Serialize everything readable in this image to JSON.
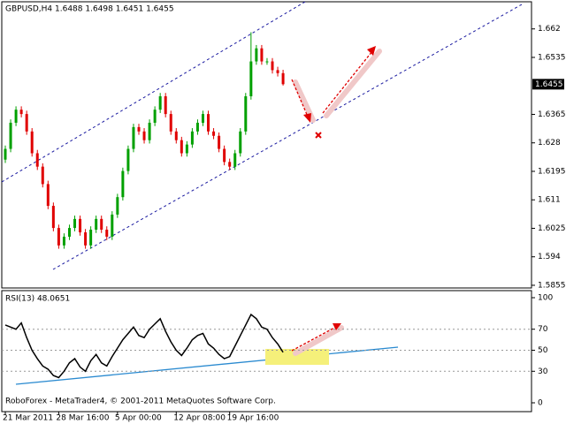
{
  "chart_data": [
    {
      "type": "candlestick",
      "title": "GBPUSD,H4  1.6488 1.6498 1.6451 1.6455",
      "categories": [
        "21 Mar 2011",
        null,
        null,
        null,
        null,
        null,
        null,
        null,
        null,
        null,
        "28 Mar 16:00",
        null,
        null,
        null,
        null,
        null,
        null,
        null,
        null,
        null,
        null,
        "5 Apr 00:00",
        null,
        null,
        null,
        null,
        null,
        null,
        null,
        null,
        null,
        null,
        "12 Apr 08:00",
        null,
        null,
        null,
        null,
        null,
        null,
        null,
        null,
        null,
        "19 Apr 16:00",
        null,
        null,
        null,
        null,
        null,
        null,
        null,
        null,
        null,
        null
      ],
      "open": [
        1.623,
        1.6262,
        1.634,
        1.6379,
        1.6366,
        1.6314,
        1.6249,
        1.6209,
        1.6157,
        1.6092,
        1.6026,
        1.5974,
        1.6,
        1.6026,
        1.6053,
        1.6013,
        1.5974,
        1.6021,
        1.6053,
        1.6021,
        1.6,
        1.6066,
        1.6118,
        1.6196,
        1.6262,
        1.6327,
        1.6314,
        1.6288,
        1.634,
        1.6379,
        1.6419,
        1.6366,
        1.6314,
        1.6288,
        1.6249,
        1.6275,
        1.6314,
        1.634,
        1.6366,
        1.6314,
        1.6301,
        1.6262,
        1.6223,
        1.6209,
        1.6249,
        1.6314,
        1.6419,
        1.6523,
        1.6562,
        1.6523,
        1.6523,
        1.6497,
        1.6488
      ],
      "high": [
        1.6272,
        1.635,
        1.6389,
        1.6389,
        1.6376,
        1.6324,
        1.6259,
        1.6219,
        1.6167,
        1.6102,
        1.6036,
        1.601,
        1.6036,
        1.6063,
        1.6063,
        1.6023,
        1.6031,
        1.6063,
        1.6063,
        1.6031,
        1.6076,
        1.6128,
        1.6206,
        1.6272,
        1.6337,
        1.6337,
        1.6324,
        1.635,
        1.6389,
        1.6429,
        1.6429,
        1.6376,
        1.6324,
        1.6298,
        1.6285,
        1.6324,
        1.635,
        1.6376,
        1.6376,
        1.6324,
        1.6311,
        1.6272,
        1.6233,
        1.6259,
        1.6324,
        1.6429,
        1.661,
        1.6572,
        1.6572,
        1.6533,
        1.6533,
        1.6507,
        1.6498
      ],
      "low": [
        1.622,
        1.6252,
        1.633,
        1.6356,
        1.6304,
        1.6239,
        1.6199,
        1.6147,
        1.6082,
        1.6016,
        1.5964,
        1.5964,
        1.599,
        1.6016,
        1.6003,
        1.5964,
        1.5964,
        1.6011,
        1.6011,
        1.599,
        1.599,
        1.6056,
        1.6108,
        1.6186,
        1.6252,
        1.6304,
        1.6278,
        1.6278,
        1.633,
        1.6369,
        1.6356,
        1.6304,
        1.6278,
        1.6239,
        1.6239,
        1.6265,
        1.6304,
        1.633,
        1.6304,
        1.6291,
        1.6252,
        1.6213,
        1.6199,
        1.6199,
        1.6239,
        1.6304,
        1.6409,
        1.6513,
        1.6513,
        1.6513,
        1.6487,
        1.6478,
        1.6451
      ],
      "close": [
        1.6262,
        1.634,
        1.6379,
        1.6366,
        1.6314,
        1.6249,
        1.6209,
        1.6157,
        1.6092,
        1.6026,
        1.5974,
        1.6,
        1.6026,
        1.6053,
        1.6013,
        1.5974,
        1.6021,
        1.6053,
        1.6021,
        1.6,
        1.6066,
        1.6118,
        1.6196,
        1.6262,
        1.6327,
        1.6314,
        1.6288,
        1.634,
        1.6379,
        1.6419,
        1.6366,
        1.6314,
        1.6288,
        1.6249,
        1.6275,
        1.6314,
        1.634,
        1.6366,
        1.6314,
        1.6301,
        1.6262,
        1.6223,
        1.6209,
        1.6249,
        1.6314,
        1.6419,
        1.6523,
        1.6562,
        1.6523,
        1.6523,
        1.6497,
        1.6488,
        1.6455
      ],
      "up_color": "#00a000",
      "down_color": "#e00000",
      "ylim": [
        1.5847,
        1.6701
      ],
      "yticks": [
        1.5855,
        1.594,
        1.6025,
        1.611,
        1.6195,
        1.628,
        1.6365,
        1.6535,
        1.662
      ]
    },
    {
      "type": "line",
      "title": "RSI(13) 48.0651",
      "values": [
        74,
        72,
        70,
        76,
        62,
        50,
        42,
        35,
        32,
        26,
        24,
        30,
        38,
        42,
        34,
        30,
        40,
        46,
        38,
        35,
        44,
        52,
        60,
        66,
        72,
        64,
        62,
        70,
        75,
        80,
        68,
        58,
        50,
        45,
        52,
        60,
        64,
        66,
        56,
        52,
        46,
        42,
        44,
        54,
        64,
        74,
        84,
        80,
        72,
        70,
        62,
        56,
        48.0651
      ],
      "color": "#000000",
      "ylim": [
        0,
        100
      ],
      "yticks": [
        0,
        30,
        50,
        70,
        100
      ]
    }
  ],
  "footer": "RoboForex - MetaTrader4, © 2001-2011 MetaQuotes Software Corp."
}
